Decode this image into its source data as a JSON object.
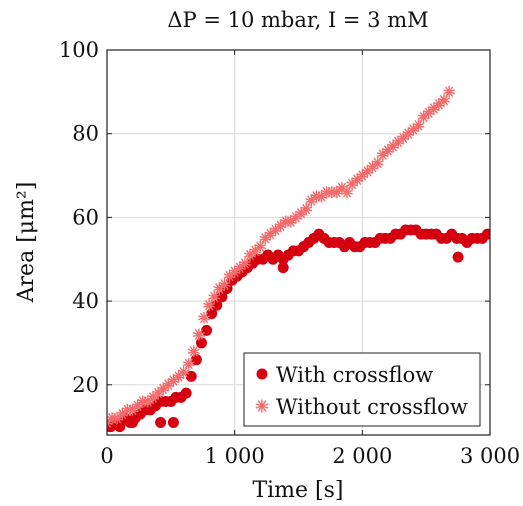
{
  "chart_data": {
    "type": "scatter",
    "title": "ΔP = 10 mbar, I = 3 mM",
    "xlabel": "Time [s]",
    "ylabel": "Area [μm²]",
    "xlim": [
      0,
      3000
    ],
    "ylim": [
      8,
      100
    ],
    "xticks": [
      0,
      1000,
      2000,
      3000
    ],
    "xtick_labels": [
      "0",
      "1 000",
      "2 000",
      "3 000"
    ],
    "yticks": [
      20,
      40,
      60,
      80,
      100
    ],
    "ytick_labels": [
      "20",
      "40",
      "60",
      "80",
      "100"
    ],
    "grid": true,
    "legend_position": "bottom-right",
    "colors": {
      "with": "#d40010",
      "without": "#f46a6a"
    },
    "series": [
      {
        "name": "With crossflow",
        "marker": "circle",
        "x": [
          0,
          30,
          60,
          100,
          140,
          180,
          220,
          260,
          300,
          340,
          380,
          420,
          460,
          500,
          540,
          580,
          620,
          660,
          700,
          740,
          780,
          820,
          860,
          900,
          940,
          980,
          1020,
          1060,
          1100,
          1140,
          1180,
          1220,
          1260,
          1300,
          1340,
          1380,
          1420,
          1460,
          1500,
          1540,
          1580,
          1620,
          1660,
          1700,
          1740,
          1780,
          1820,
          1860,
          1900,
          1940,
          1980,
          2020,
          2060,
          2100,
          2140,
          2180,
          2220,
          2260,
          2300,
          2340,
          2380,
          2420,
          2460,
          2500,
          2540,
          2580,
          2620,
          2660,
          2700,
          2740,
          2780,
          2820,
          2860,
          2900,
          2940,
          2980,
          200,
          420,
          520,
          1380,
          2750
        ],
        "y": [
          10,
          10,
          11,
          10,
          12,
          11,
          12,
          13,
          14,
          14,
          15,
          16,
          16,
          16,
          17,
          17,
          18,
          22,
          26,
          30,
          33,
          37,
          39,
          41,
          43,
          45,
          46,
          47,
          48,
          49,
          50,
          50,
          51,
          50,
          51,
          50,
          51,
          52,
          52,
          53,
          54,
          55,
          56,
          55,
          54,
          54,
          54,
          53,
          54,
          53,
          53,
          54,
          54,
          54,
          55,
          55,
          55,
          56,
          56,
          57,
          57,
          57,
          56,
          56,
          56,
          56,
          55,
          55,
          56,
          55,
          55,
          54,
          55,
          55,
          55,
          56,
          11,
          11,
          11,
          48,
          50.5
        ]
      },
      {
        "name": "Without crossflow",
        "marker": "star",
        "x": [
          0,
          40,
          80,
          120,
          160,
          200,
          240,
          280,
          320,
          360,
          400,
          440,
          480,
          520,
          560,
          600,
          640,
          680,
          720,
          760,
          800,
          840,
          880,
          920,
          960,
          1000,
          1040,
          1080,
          1120,
          1160,
          1200,
          1240,
          1280,
          1320,
          1360,
          1400,
          1440,
          1480,
          1520,
          1560,
          1600,
          1640,
          1680,
          1720,
          1760,
          1800,
          1840,
          1880,
          1920,
          1960,
          2000,
          2040,
          2080,
          2120,
          2160,
          2200,
          2240,
          2280,
          2320,
          2360,
          2400,
          2440,
          2480,
          2520,
          2560,
          2600,
          2640,
          2680
        ],
        "y": [
          11,
          12,
          12,
          13,
          14,
          14,
          15,
          16,
          16,
          17,
          18,
          19,
          20,
          21,
          22,
          23,
          25,
          28,
          32,
          36,
          39,
          41,
          43,
          44,
          46,
          47,
          48,
          49,
          51,
          52,
          53,
          55,
          56,
          57,
          58,
          59,
          59,
          60,
          61,
          62,
          64,
          65,
          65,
          66,
          66,
          66,
          67,
          66,
          68,
          69,
          70,
          71,
          72,
          73,
          75,
          76,
          77,
          78,
          79,
          80,
          81,
          82,
          84,
          85,
          86,
          87,
          88,
          90
        ]
      }
    ]
  }
}
